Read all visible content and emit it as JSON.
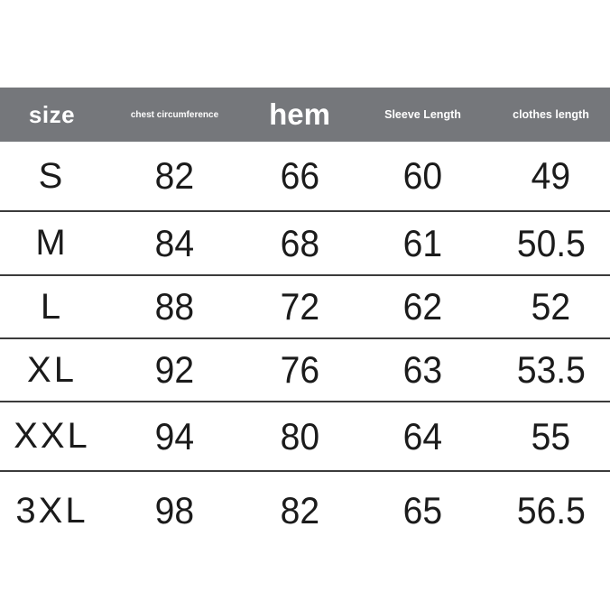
{
  "chart_data": {
    "type": "table",
    "columns": [
      "size",
      "chest circumference",
      "hem",
      "Sleeve Length",
      "clothes length"
    ],
    "rows": [
      [
        "S",
        "82",
        "66",
        "60",
        "49"
      ],
      [
        "M",
        "84",
        "68",
        "61",
        "50.5"
      ],
      [
        "L",
        "88",
        "72",
        "62",
        "52"
      ],
      [
        "XL",
        "92",
        "76",
        "63",
        "53.5"
      ],
      [
        "XXL",
        "94",
        "80",
        "64",
        "55"
      ],
      [
        "3XL",
        "98",
        "82",
        "65",
        "56.5"
      ]
    ]
  },
  "colors": {
    "page_bg": "#ffffff",
    "header_bg": "#75777b",
    "header_text": "#ffffff",
    "cell_text": "#1b1b1b",
    "separator": "#3b3b3b"
  }
}
